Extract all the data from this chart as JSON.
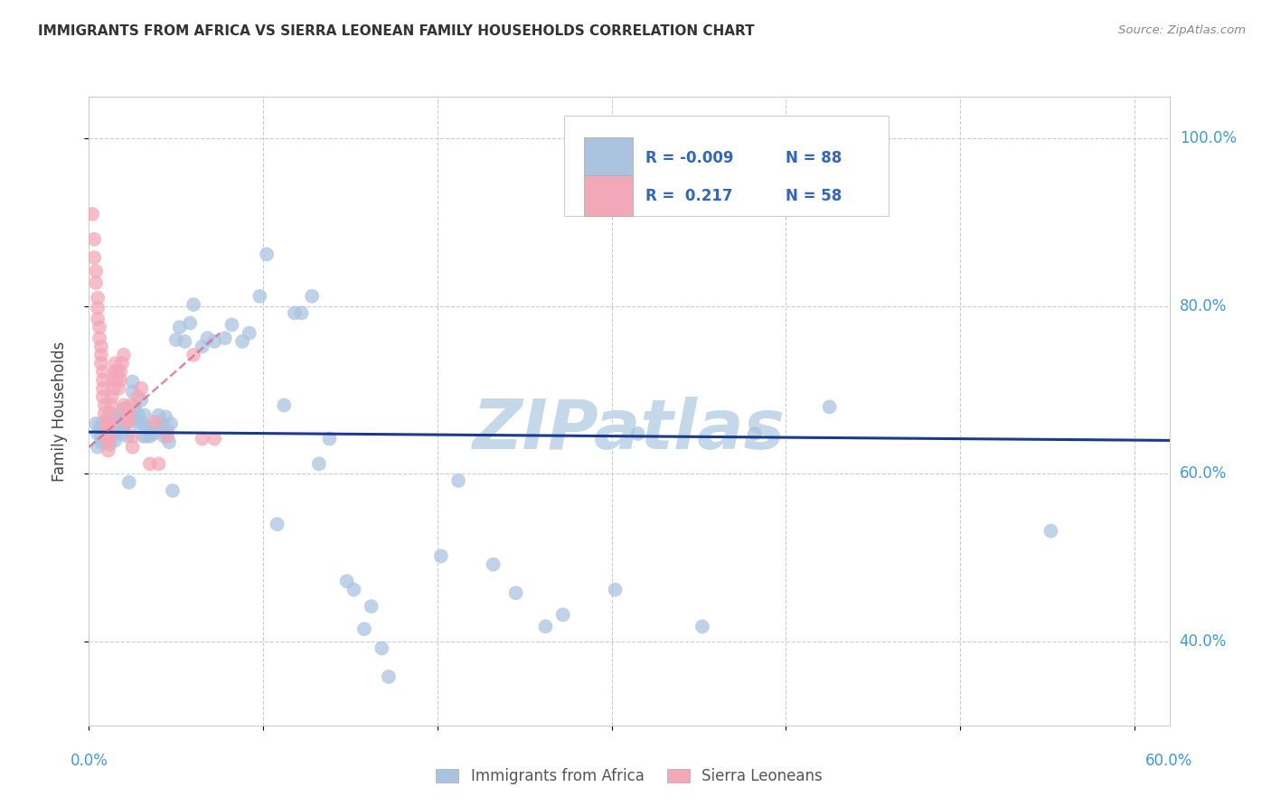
{
  "title": "IMMIGRANTS FROM AFRICA VS SIERRA LEONEAN FAMILY HOUSEHOLDS CORRELATION CHART",
  "source": "Source: ZipAtlas.com",
  "ylabel": "Family Households",
  "y_ticks_labels": [
    "40.0%",
    "60.0%",
    "80.0%",
    "100.0%"
  ],
  "y_tick_vals": [
    0.4,
    0.6,
    0.8,
    1.0
  ],
  "x_tick_vals": [
    0.0,
    0.1,
    0.2,
    0.3,
    0.4,
    0.5,
    0.6
  ],
  "xlim": [
    0.0,
    0.62
  ],
  "ylim": [
    0.3,
    1.05
  ],
  "color_blue": "#aac4e0",
  "color_pink": "#f2a8b8",
  "trendline_blue_color": "#1a3a8a",
  "trendline_pink_color": "#d07090",
  "watermark": "ZIPatlas",
  "watermark_color": "#c5d8ea",
  "blue_scatter": [
    [
      0.004,
      0.66
    ],
    [
      0.005,
      0.648
    ],
    [
      0.005,
      0.632
    ],
    [
      0.006,
      0.655
    ],
    [
      0.007,
      0.645
    ],
    [
      0.007,
      0.638
    ],
    [
      0.008,
      0.662
    ],
    [
      0.008,
      0.64
    ],
    [
      0.009,
      0.65
    ],
    [
      0.01,
      0.658
    ],
    [
      0.01,
      0.642
    ],
    [
      0.011,
      0.648
    ],
    [
      0.012,
      0.66
    ],
    [
      0.012,
      0.635
    ],
    [
      0.013,
      0.655
    ],
    [
      0.013,
      0.645
    ],
    [
      0.014,
      0.65
    ],
    [
      0.015,
      0.668
    ],
    [
      0.015,
      0.655
    ],
    [
      0.015,
      0.64
    ],
    [
      0.016,
      0.662
    ],
    [
      0.017,
      0.652
    ],
    [
      0.018,
      0.672
    ],
    [
      0.018,
      0.648
    ],
    [
      0.019,
      0.665
    ],
    [
      0.02,
      0.678
    ],
    [
      0.02,
      0.655
    ],
    [
      0.021,
      0.66
    ],
    [
      0.022,
      0.668
    ],
    [
      0.022,
      0.645
    ],
    [
      0.023,
      0.59
    ],
    [
      0.024,
      0.67
    ],
    [
      0.025,
      0.71
    ],
    [
      0.025,
      0.698
    ],
    [
      0.026,
      0.68
    ],
    [
      0.027,
      0.665
    ],
    [
      0.028,
      0.66
    ],
    [
      0.028,
      0.672
    ],
    [
      0.03,
      0.688
    ],
    [
      0.03,
      0.662
    ],
    [
      0.031,
      0.645
    ],
    [
      0.032,
      0.67
    ],
    [
      0.033,
      0.645
    ],
    [
      0.033,
      0.655
    ],
    [
      0.035,
      0.645
    ],
    [
      0.035,
      0.652
    ],
    [
      0.037,
      0.648
    ],
    [
      0.038,
      0.658
    ],
    [
      0.04,
      0.67
    ],
    [
      0.04,
      0.658
    ],
    [
      0.042,
      0.66
    ],
    [
      0.043,
      0.645
    ],
    [
      0.044,
      0.668
    ],
    [
      0.045,
      0.652
    ],
    [
      0.046,
      0.638
    ],
    [
      0.047,
      0.66
    ],
    [
      0.048,
      0.58
    ],
    [
      0.05,
      0.76
    ],
    [
      0.052,
      0.775
    ],
    [
      0.055,
      0.758
    ],
    [
      0.058,
      0.78
    ],
    [
      0.06,
      0.802
    ],
    [
      0.065,
      0.752
    ],
    [
      0.068,
      0.762
    ],
    [
      0.072,
      0.758
    ],
    [
      0.078,
      0.762
    ],
    [
      0.082,
      0.778
    ],
    [
      0.088,
      0.758
    ],
    [
      0.092,
      0.768
    ],
    [
      0.098,
      0.812
    ],
    [
      0.102,
      0.862
    ],
    [
      0.108,
      0.54
    ],
    [
      0.112,
      0.682
    ],
    [
      0.118,
      0.792
    ],
    [
      0.122,
      0.792
    ],
    [
      0.128,
      0.812
    ],
    [
      0.132,
      0.612
    ],
    [
      0.138,
      0.642
    ],
    [
      0.148,
      0.472
    ],
    [
      0.152,
      0.462
    ],
    [
      0.158,
      0.415
    ],
    [
      0.162,
      0.442
    ],
    [
      0.168,
      0.392
    ],
    [
      0.172,
      0.358
    ],
    [
      0.202,
      0.502
    ],
    [
      0.212,
      0.592
    ],
    [
      0.232,
      0.492
    ],
    [
      0.245,
      0.458
    ],
    [
      0.262,
      0.418
    ],
    [
      0.272,
      0.432
    ],
    [
      0.302,
      0.462
    ],
    [
      0.315,
      0.648
    ],
    [
      0.352,
      0.418
    ],
    [
      0.382,
      0.648
    ],
    [
      0.425,
      0.68
    ],
    [
      0.552,
      0.532
    ]
  ],
  "pink_scatter": [
    [
      0.002,
      0.91
    ],
    [
      0.003,
      0.88
    ],
    [
      0.003,
      0.858
    ],
    [
      0.004,
      0.842
    ],
    [
      0.004,
      0.828
    ],
    [
      0.005,
      0.81
    ],
    [
      0.005,
      0.798
    ],
    [
      0.005,
      0.785
    ],
    [
      0.006,
      0.775
    ],
    [
      0.006,
      0.762
    ],
    [
      0.007,
      0.752
    ],
    [
      0.007,
      0.742
    ],
    [
      0.007,
      0.732
    ],
    [
      0.008,
      0.722
    ],
    [
      0.008,
      0.712
    ],
    [
      0.008,
      0.702
    ],
    [
      0.008,
      0.692
    ],
    [
      0.009,
      0.682
    ],
    [
      0.009,
      0.672
    ],
    [
      0.01,
      0.662
    ],
    [
      0.01,
      0.652
    ],
    [
      0.01,
      0.642
    ],
    [
      0.011,
      0.638
    ],
    [
      0.011,
      0.628
    ],
    [
      0.011,
      0.658
    ],
    [
      0.012,
      0.648
    ],
    [
      0.012,
      0.672
    ],
    [
      0.013,
      0.662
    ],
    [
      0.013,
      0.682
    ],
    [
      0.013,
      0.692
    ],
    [
      0.014,
      0.702
    ],
    [
      0.014,
      0.712
    ],
    [
      0.015,
      0.722
    ],
    [
      0.015,
      0.732
    ],
    [
      0.016,
      0.722
    ],
    [
      0.016,
      0.712
    ],
    [
      0.017,
      0.702
    ],
    [
      0.018,
      0.712
    ],
    [
      0.018,
      0.722
    ],
    [
      0.019,
      0.732
    ],
    [
      0.02,
      0.742
    ],
    [
      0.02,
      0.682
    ],
    [
      0.021,
      0.672
    ],
    [
      0.022,
      0.662
    ],
    [
      0.022,
      0.662
    ],
    [
      0.023,
      0.672
    ],
    [
      0.024,
      0.682
    ],
    [
      0.025,
      0.645
    ],
    [
      0.025,
      0.632
    ],
    [
      0.028,
      0.692
    ],
    [
      0.03,
      0.702
    ],
    [
      0.035,
      0.612
    ],
    [
      0.038,
      0.662
    ],
    [
      0.04,
      0.612
    ],
    [
      0.045,
      0.645
    ],
    [
      0.06,
      0.742
    ],
    [
      0.065,
      0.642
    ],
    [
      0.072,
      0.642
    ]
  ],
  "blue_trend_x": [
    0.0,
    0.62
  ],
  "blue_trend_y": [
    0.65,
    0.64
  ],
  "pink_trend_x": [
    0.0,
    0.075
  ],
  "pink_trend_y": [
    0.632,
    0.768
  ]
}
